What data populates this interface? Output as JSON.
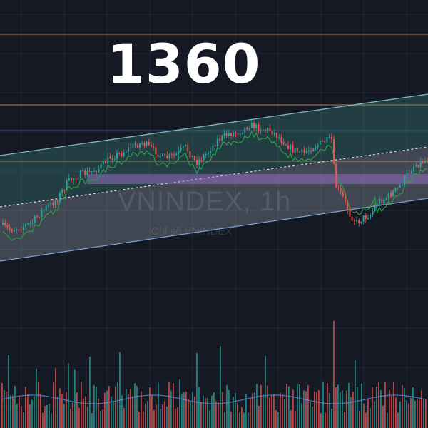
{
  "annotation": {
    "level_label": "1360"
  },
  "watermark": {
    "symbol": "VNINDEX, 1h",
    "name": "Chỉ số VNINDEX"
  },
  "colors": {
    "background": "#151924",
    "grid": "#222838",
    "up": "#26a69a",
    "down": "#ef5350",
    "channel_upper_fill": "rgba(70,150,140,0.30)",
    "channel_lower_fill": "rgba(180,190,200,0.28)",
    "channel_edge": "#7fb8c0",
    "midline": "#d8dde6",
    "horizontal_orange": "#c8874a",
    "horizontal_blue": "#3d5a8a",
    "purple_zone": "rgba(170,120,220,0.45)",
    "trail_green": "#2e9d48",
    "trail_red": "#b84040",
    "volume_ma": "#5b8fd6"
  },
  "chart_data": {
    "type": "candlestick",
    "symbol": "VNINDEX",
    "timeframe": "1h",
    "annotated_level": 1360,
    "horizontal_levels": [
      "orange",
      "orange",
      "blue",
      "orange"
    ],
    "indicators": [
      "ascending regression channel with midline",
      "trailing stop line",
      "volume with moving average"
    ],
    "grid": true,
    "legend": "none"
  }
}
